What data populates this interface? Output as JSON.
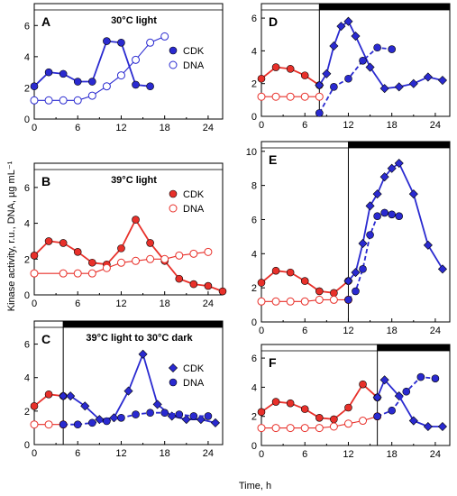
{
  "figure": {
    "ylabel": "Kinase activity, r.u., DNA, µg mL⁻¹",
    "xlabel": "Time, h"
  },
  "colors": {
    "red": "#e8302a",
    "blue": "#2a2ad0",
    "light_bar_fill": "#ffffff",
    "dark_bar_fill": "#000000"
  },
  "chart_data": [
    {
      "panel": "A",
      "condition": "30°C light",
      "type": "line",
      "xlim": [
        0,
        26
      ],
      "ylim": [
        0,
        7
      ],
      "xticks": [
        0,
        6,
        12,
        18,
        24
      ],
      "yticks": [
        0,
        2,
        4,
        6
      ],
      "light_dark": [
        {
          "from": 0,
          "to": 26,
          "state": "light"
        }
      ],
      "transition": null,
      "legend": [
        {
          "label": "CDK",
          "marker": "circle",
          "filled": true,
          "color": "blue"
        },
        {
          "label": "DNA",
          "marker": "circle",
          "filled": false,
          "color": "blue"
        }
      ],
      "series": [
        {
          "name": "CDK",
          "color": "blue",
          "marker": "circle",
          "filled": true,
          "dash": false,
          "x": [
            0,
            2,
            4,
            6,
            8,
            10,
            12,
            14,
            16
          ],
          "y": [
            2.1,
            3.0,
            2.9,
            2.4,
            2.4,
            5.0,
            4.9,
            2.2,
            2.1
          ]
        },
        {
          "name": "DNA",
          "color": "blue",
          "marker": "circle",
          "filled": false,
          "dash": false,
          "x": [
            0,
            2,
            4,
            6,
            8,
            10,
            12,
            14,
            16,
            18
          ],
          "y": [
            1.2,
            1.2,
            1.2,
            1.2,
            1.5,
            2.1,
            2.8,
            3.8,
            4.9,
            5.3
          ]
        }
      ]
    },
    {
      "panel": "B",
      "condition": "39°C light",
      "type": "line",
      "xlim": [
        0,
        26
      ],
      "ylim": [
        0,
        7
      ],
      "xticks": [
        0,
        6,
        12,
        18,
        24
      ],
      "yticks": [
        0,
        2,
        4,
        6
      ],
      "light_dark": [
        {
          "from": 0,
          "to": 26,
          "state": "light"
        }
      ],
      "transition": null,
      "legend": [
        {
          "label": "CDK",
          "marker": "circle",
          "filled": true,
          "color": "red"
        },
        {
          "label": "DNA",
          "marker": "circle",
          "filled": false,
          "color": "red"
        }
      ],
      "series": [
        {
          "name": "CDK",
          "color": "red",
          "marker": "circle",
          "filled": true,
          "dash": false,
          "x": [
            0,
            2,
            4,
            6,
            8,
            10,
            12,
            14,
            16,
            18,
            20,
            22,
            24,
            26
          ],
          "y": [
            2.2,
            3.0,
            2.9,
            2.4,
            1.8,
            1.7,
            2.6,
            4.2,
            2.9,
            1.9,
            0.9,
            0.6,
            0.5,
            0.2
          ]
        },
        {
          "name": "DNA",
          "color": "red",
          "marker": "circle",
          "filled": false,
          "dash": false,
          "x": [
            0,
            4,
            6,
            8,
            10,
            12,
            14,
            16,
            18,
            20,
            22,
            24
          ],
          "y": [
            1.2,
            1.2,
            1.2,
            1.2,
            1.5,
            1.8,
            1.9,
            2.0,
            2.0,
            2.2,
            2.3,
            2.4
          ]
        }
      ]
    },
    {
      "panel": "C",
      "condition": "39°C light to 30°C dark",
      "type": "line",
      "xlim": [
        0,
        26
      ],
      "ylim": [
        0,
        7
      ],
      "xticks": [
        0,
        6,
        12,
        18,
        24
      ],
      "yticks": [
        0,
        2,
        4,
        6
      ],
      "light_dark": [
        {
          "from": 0,
          "to": 4,
          "state": "light"
        },
        {
          "from": 4,
          "to": 26,
          "state": "dark"
        }
      ],
      "transition": 4,
      "legend": [
        {
          "label": "CDK",
          "marker": "diamond",
          "filled": true,
          "color": "blue"
        },
        {
          "label": "DNA",
          "marker": "circle",
          "filled": true,
          "color": "blue"
        }
      ],
      "series": [
        {
          "name": "CDK (39°C)",
          "color": "red",
          "marker": "circle",
          "filled": true,
          "dash": false,
          "x": [
            0,
            2,
            4
          ],
          "y": [
            2.3,
            3.0,
            2.9
          ]
        },
        {
          "name": "DNA (39°C)",
          "color": "red",
          "marker": "circle",
          "filled": false,
          "dash": false,
          "x": [
            0,
            2,
            4
          ],
          "y": [
            1.2,
            1.2,
            1.2
          ]
        },
        {
          "name": "CDK",
          "color": "blue",
          "marker": "diamond",
          "filled": true,
          "dash": false,
          "x": [
            4,
            5,
            7,
            9,
            11,
            13,
            15,
            17,
            19,
            21,
            23,
            25
          ],
          "y": [
            2.9,
            2.9,
            2.3,
            1.5,
            1.6,
            3.2,
            5.4,
            2.4,
            1.7,
            1.5,
            1.5,
            1.3
          ]
        },
        {
          "name": "DNA",
          "color": "blue",
          "marker": "circle",
          "filled": true,
          "dash": true,
          "x": [
            4,
            6,
            8,
            10,
            12,
            14,
            16,
            18,
            20,
            22,
            24
          ],
          "y": [
            1.2,
            1.2,
            1.3,
            1.4,
            1.6,
            1.8,
            1.9,
            1.9,
            1.8,
            1.7,
            1.7
          ]
        }
      ]
    },
    {
      "panel": "D",
      "condition": "",
      "type": "line",
      "xlim": [
        0,
        26
      ],
      "ylim": [
        0,
        6.5
      ],
      "xticks": [
        0,
        6,
        12,
        18,
        24
      ],
      "yticks": [
        0,
        2,
        4,
        6
      ],
      "light_dark": [
        {
          "from": 0,
          "to": 8,
          "state": "light"
        },
        {
          "from": 8,
          "to": 26,
          "state": "dark"
        }
      ],
      "transition": 8,
      "legend": [],
      "series": [
        {
          "name": "CDK (39°C)",
          "color": "red",
          "marker": "circle",
          "filled": true,
          "dash": false,
          "x": [
            0,
            2,
            4,
            6,
            8
          ],
          "y": [
            2.3,
            3.0,
            2.9,
            2.5,
            1.9
          ]
        },
        {
          "name": "DNA (39°C)",
          "color": "red",
          "marker": "circle",
          "filled": false,
          "dash": false,
          "x": [
            0,
            2,
            4,
            6,
            8
          ],
          "y": [
            1.2,
            1.2,
            1.2,
            1.2,
            1.2
          ]
        },
        {
          "name": "CDK",
          "color": "blue",
          "marker": "diamond",
          "filled": true,
          "dash": false,
          "x": [
            8,
            9,
            10,
            11,
            12,
            13,
            15,
            17,
            19,
            21,
            23,
            25
          ],
          "y": [
            1.9,
            2.6,
            4.3,
            5.5,
            5.8,
            4.9,
            3.0,
            1.7,
            1.8,
            2.0,
            2.4,
            2.2
          ]
        },
        {
          "name": "DNA",
          "color": "blue",
          "marker": "circle",
          "filled": true,
          "dash": true,
          "x": [
            8,
            10,
            12,
            14,
            16,
            18
          ],
          "y": [
            0.2,
            1.8,
            2.3,
            3.4,
            4.2,
            4.1
          ]
        }
      ]
    },
    {
      "panel": "E",
      "condition": "",
      "type": "line",
      "xlim": [
        0,
        26
      ],
      "ylim": [
        0,
        10.2
      ],
      "xticks": [
        0,
        6,
        12,
        18,
        24
      ],
      "yticks": [
        0,
        2,
        4,
        6,
        8,
        10
      ],
      "light_dark": [
        {
          "from": 0,
          "to": 12,
          "state": "light"
        },
        {
          "from": 12,
          "to": 26,
          "state": "dark"
        }
      ],
      "transition": 12,
      "legend": [],
      "series": [
        {
          "name": "CDK (39°C)",
          "color": "red",
          "marker": "circle",
          "filled": true,
          "dash": false,
          "x": [
            0,
            2,
            4,
            6,
            8,
            10,
            12
          ],
          "y": [
            2.3,
            3.0,
            2.9,
            2.4,
            1.8,
            1.7,
            2.4
          ]
        },
        {
          "name": "DNA (39°C)",
          "color": "red",
          "marker": "circle",
          "filled": false,
          "dash": false,
          "x": [
            0,
            2,
            4,
            6,
            8,
            10,
            12
          ],
          "y": [
            1.2,
            1.2,
            1.2,
            1.2,
            1.3,
            1.3,
            1.3
          ]
        },
        {
          "name": "CDK",
          "color": "blue",
          "marker": "diamond",
          "filled": true,
          "dash": false,
          "x": [
            12,
            13,
            14,
            15,
            16,
            17,
            18,
            19,
            21,
            23,
            25
          ],
          "y": [
            2.4,
            2.9,
            4.6,
            6.8,
            7.5,
            8.5,
            9.0,
            9.3,
            7.5,
            4.5,
            3.1
          ]
        },
        {
          "name": "DNA",
          "color": "blue",
          "marker": "circle",
          "filled": true,
          "dash": true,
          "x": [
            12,
            13,
            14,
            15,
            16,
            17,
            18,
            19
          ],
          "y": [
            1.3,
            1.8,
            3.1,
            5.1,
            6.2,
            6.4,
            6.3,
            6.2
          ]
        }
      ]
    },
    {
      "panel": "F",
      "condition": "",
      "type": "line",
      "xlim": [
        0,
        26
      ],
      "ylim": [
        0,
        6.5
      ],
      "xticks": [
        0,
        6,
        12,
        18,
        24
      ],
      "yticks": [
        0,
        2,
        4,
        6
      ],
      "light_dark": [
        {
          "from": 0,
          "to": 16,
          "state": "light"
        },
        {
          "from": 16,
          "to": 26,
          "state": "dark"
        }
      ],
      "transition": 16,
      "legend": [],
      "series": [
        {
          "name": "CDK (39°C)",
          "color": "red",
          "marker": "circle",
          "filled": true,
          "dash": false,
          "x": [
            0,
            2,
            4,
            6,
            8,
            10,
            12,
            14,
            16
          ],
          "y": [
            2.3,
            3.0,
            2.9,
            2.5,
            1.9,
            1.8,
            2.6,
            4.2,
            3.3
          ]
        },
        {
          "name": "DNA (39°C)",
          "color": "red",
          "marker": "circle",
          "filled": false,
          "dash": false,
          "x": [
            0,
            2,
            4,
            6,
            8,
            10,
            12,
            14,
            16
          ],
          "y": [
            1.2,
            1.2,
            1.2,
            1.2,
            1.2,
            1.3,
            1.5,
            1.7,
            2.0
          ]
        },
        {
          "name": "CDK",
          "color": "blue",
          "marker": "diamond",
          "filled": true,
          "dash": false,
          "x": [
            16,
            17,
            19,
            21,
            23,
            25
          ],
          "y": [
            3.3,
            4.5,
            3.4,
            1.7,
            1.3,
            1.3
          ]
        },
        {
          "name": "DNA",
          "color": "blue",
          "marker": "circle",
          "filled": true,
          "dash": true,
          "x": [
            16,
            18,
            20,
            22,
            24
          ],
          "y": [
            2.0,
            2.4,
            3.7,
            4.7,
            4.6
          ]
        }
      ]
    }
  ]
}
